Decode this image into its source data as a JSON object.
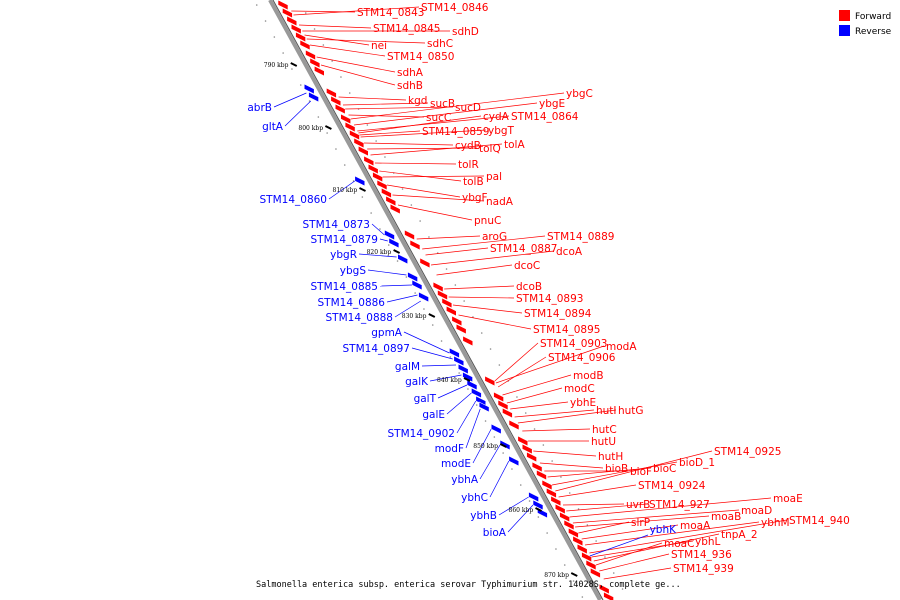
{
  "caption": "Salmonella enterica subsp. enterica serovar Typhimurium str. 14028S, complete ge...",
  "legend": {
    "forward_label": "Forward",
    "reverse_label": "Reverse",
    "forward_color": "#ff0000",
    "reverse_color": "#0000ff"
  },
  "ticks": [
    "790 kbp",
    "800 kbp",
    "810 kbp",
    "820 kbp",
    "830 kbp",
    "840 kbp",
    "850 kbp",
    "860 kbp",
    "870 kbp"
  ],
  "forward_labels": [
    "STM14_0843",
    "STM14_0846",
    "STM14_0845",
    "sdhD",
    "nei",
    "sdhC",
    "STM14_0850",
    "sdhA",
    "sdhB",
    "kgd",
    "sucB",
    "sucD",
    "sucC",
    "ybgC",
    "ybgE",
    "STM14_0864",
    "cydA",
    "ybgT",
    "STM14_0859",
    "cydB",
    "tolQ",
    "tolA",
    "tolR",
    "tolB",
    "pal",
    "ybgF",
    "nadA",
    "pnuC",
    "aroG",
    "STM14_0889",
    "STM14_0887",
    "dcoA",
    "dcoC",
    "dcoB",
    "STM14_0893",
    "STM14_0894",
    "STM14_0895",
    "STM14_0903",
    "modA",
    "STM14_0906",
    "modB",
    "modC",
    "ybhE",
    "hutI",
    "hutG",
    "hutC",
    "hutU",
    "hutH",
    "bioB",
    "bioF",
    "bioC",
    "bioD_1",
    "STM14_0925",
    "STM14_0924",
    "uvrB",
    "STM14_927",
    "moaE",
    "moaD",
    "moaB",
    "slrP",
    "moaA",
    "ybhM",
    "STM14_940",
    "ybhL",
    "tnpA_2",
    "moaC",
    "STM14_936",
    "STM14_939"
  ],
  "reverse_labels": [
    "abrB",
    "gltA",
    "STM14_0860",
    "STM14_0873",
    "STM14_0879",
    "ybgR",
    "ybgS",
    "STM14_0885",
    "STM14_0886",
    "STM14_0888",
    "gpmA",
    "STM14_0897",
    "galM",
    "galK",
    "galT",
    "galE",
    "STM14_0902",
    "modF",
    "modE",
    "ybhA",
    "ybhC",
    "ybhB",
    "bioA",
    "ybhK"
  ]
}
